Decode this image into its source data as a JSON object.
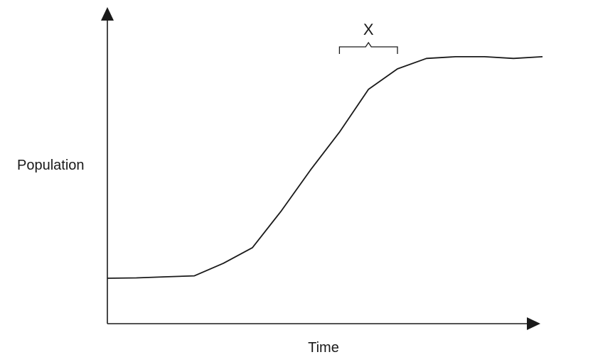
{
  "chart_data": {
    "type": "line",
    "xlabel": "Time",
    "ylabel": "Population",
    "x": [
      0,
      1,
      2,
      3,
      4,
      5,
      6,
      7,
      8,
      9,
      10,
      11,
      12,
      13,
      14,
      15
    ],
    "series": [
      {
        "values": [
          0.0,
          0.1,
          0.4,
          0.7,
          4.3,
          8.8,
          19.4,
          31.1,
          42.0,
          54.3,
          60.2,
          63.2,
          63.7,
          63.7,
          63.2,
          63.7
        ]
      }
    ],
    "annotations": [
      {
        "label": "X",
        "kind": "bracket",
        "x_start": 8,
        "x_end": 10
      }
    ],
    "ticks": "none",
    "grid": false,
    "line_color": "#1a1a1a"
  }
}
